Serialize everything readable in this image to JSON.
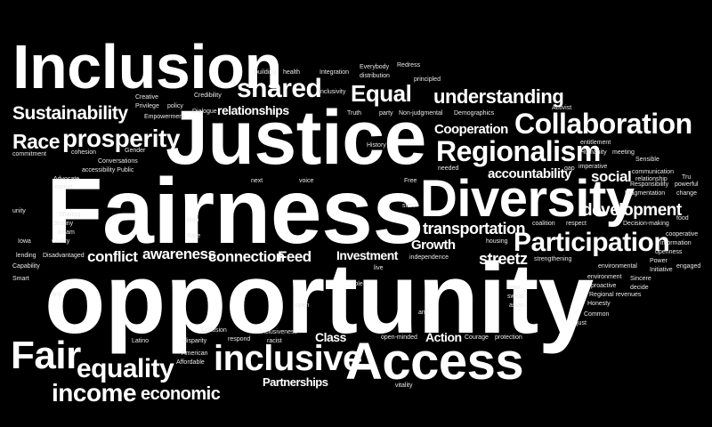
{
  "background_color": "#000000",
  "text_color": "#ffffff",
  "words": {
    "fairness": "Fairness",
    "opportunity": "opportunity",
    "justice": "Justice",
    "inclusion": "Inclusion",
    "diversity": "Diversity",
    "access": "Access",
    "inclusive": "inclusive",
    "fair": "Fair",
    "collaboration": "Collaboration",
    "regionalism": "Regionalism",
    "participation": "Participation",
    "prosperity": "prosperity",
    "shared": "shared",
    "equal": "Equal",
    "sustainability": "Sustainability",
    "race": "Race",
    "equality": "equality",
    "income": "income",
    "economic": "economic",
    "understanding": "understanding",
    "development": "development",
    "transportation": "transportation",
    "awareness": "awareness",
    "connection": "connection",
    "conflict": "conflict",
    "feed": "Feed",
    "investment": "Investment",
    "growth": "Growth",
    "streetz": "streetz",
    "social": "social",
    "accountability": "accountability",
    "cooperation": "Cooperation",
    "relationships": "relationships",
    "partnerships": "Partnerships",
    "action": "Action",
    "class": "Class",
    "building": "building",
    "health": "health",
    "integration": "Integration",
    "everybody": "Everybody",
    "redress": "Redress",
    "principled": "principled",
    "distribution": "distribution",
    "inclusivity": "Inclusivity",
    "creative": "Creative",
    "privilege": "Privilege",
    "policy": "policy",
    "credibility": "Credibility",
    "empowerment": "Empowerment",
    "dialogue": "Dialogue",
    "truth": "Truth",
    "party": "party",
    "nonjudgmental": "Non-judgmental",
    "demographics": "Demographics",
    "activist": "Activist",
    "commitment": "commitment",
    "cohesion": "cohesion",
    "gender": "Gender",
    "conversations": "Conversations",
    "accessibility_public": "accessibility Public",
    "history": "History",
    "entitlement": "entitlement",
    "humanity": "Humanity",
    "meeting": "meeting",
    "sensible": "Sensible",
    "gap": "gap",
    "imperative": "imperative",
    "needed": "needed",
    "responsibility": "Responsibility",
    "fragmentation": "Fragmentation",
    "change": "change",
    "communication": "communication",
    "relationship": "relationship",
    "trust": "Tru",
    "powerful": "powerful",
    "advocate": "Advocate",
    "market": "market",
    "free": "Free",
    "voice": "voice",
    "next": "next",
    "unity": "unity",
    "sharing": "Sharing",
    "destiny": "destiny",
    "dream": "dream",
    "civility": "Civility",
    "lowa": "Iowa",
    "rare": "Rare",
    "plan": "plan",
    "street": "street",
    "coalition": "coalition",
    "respect": "respect",
    "decisionmaking": "Decision-making",
    "food": "food",
    "cooperative": "cooperative",
    "information": "information",
    "openness": "openness",
    "power": "Power",
    "engaged": "engaged",
    "lending": "lending",
    "disadvantaged": "Disadvantaged",
    "capability": "Capability",
    "smart": "Smart",
    "anti": "anti",
    "independence": "independence",
    "housing": "housing",
    "strengthening": "strengthening",
    "environmental": "environmental",
    "initiative": "Initiative",
    "environment": "environment",
    "proactive": "proactive",
    "sincere": "Sincere",
    "decide": "decide",
    "live": "live",
    "role": "role",
    "now": "Now",
    "sweat": "sweat",
    "asian": "asian",
    "regional_revenues": "Regional revenues",
    "honesty": "Honesty",
    "common": "Common",
    "just": "just",
    "open": "open",
    "and": "and",
    "latino": "Latino",
    "collusion": "Collusion",
    "disparity": "disparity",
    "respond": "respond",
    "inclusiveness": "Inclusiveness",
    "racist": "racist",
    "american": "American",
    "affordable": "Affordable",
    "openminded": "open-minded",
    "courage": "Courage",
    "protection": "protection",
    "vitality": "vitality"
  }
}
